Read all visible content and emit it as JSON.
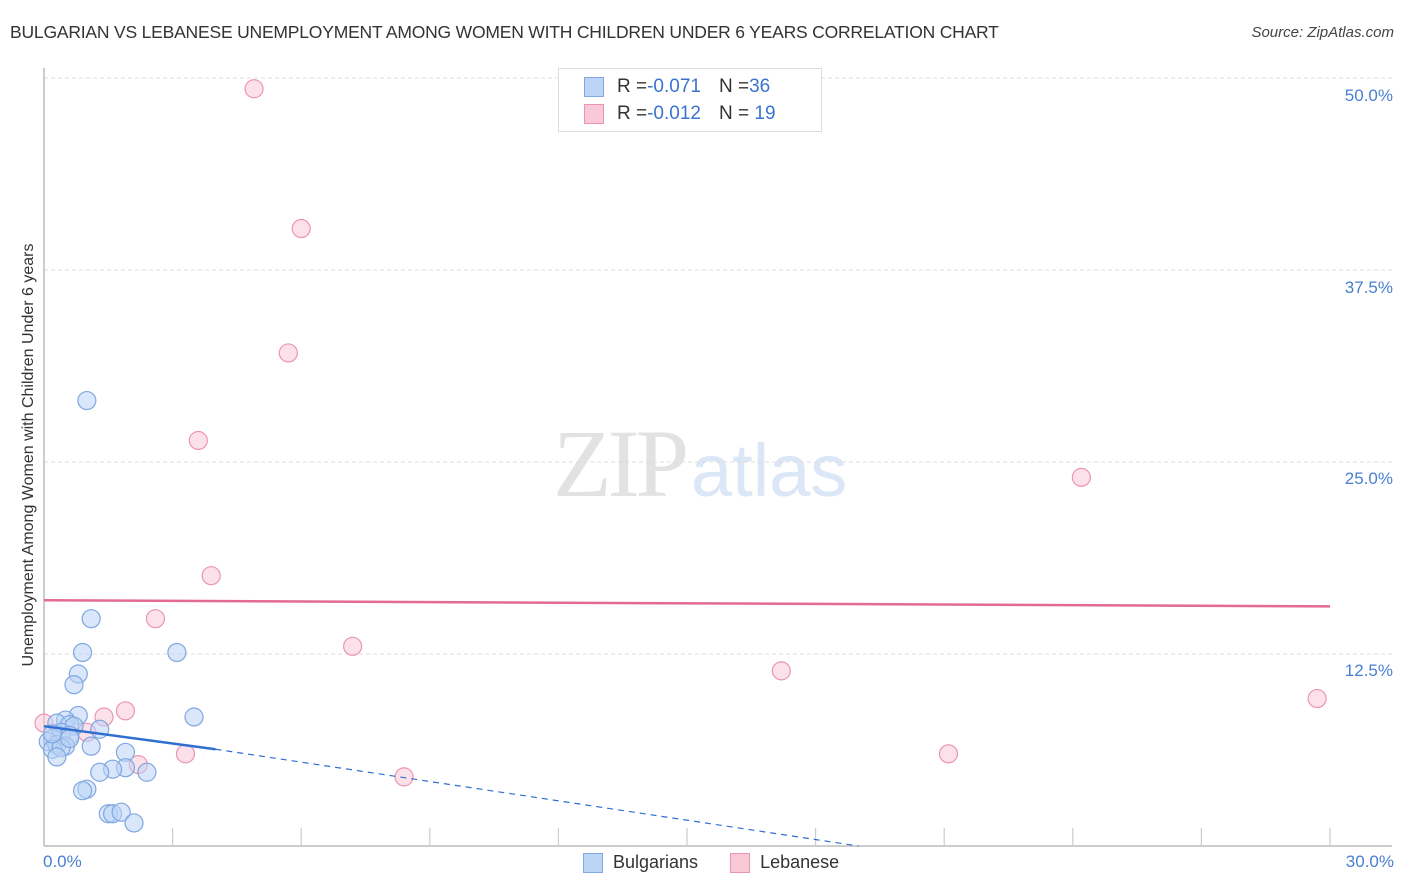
{
  "header": {
    "title": "BULGARIAN VS LEBANESE UNEMPLOYMENT AMONG WOMEN WITH CHILDREN UNDER 6 YEARS CORRELATION CHART",
    "source": "Source: ZipAtlas.com"
  },
  "legend": {
    "rows": [
      {
        "r_label": "R = ",
        "r_value": "-0.071",
        "n_label": "N = ",
        "n_value": "36"
      },
      {
        "r_label": "R = ",
        "r_value": "-0.012",
        "n_label": "N = ",
        "n_value": " 19"
      }
    ],
    "series": [
      {
        "label": "Bulgarians"
      },
      {
        "label": "Lebanese"
      }
    ]
  },
  "watermark": {
    "zip": "ZIP",
    "atlas": "atlas"
  },
  "axes": {
    "ylabel": "Unemployment Among Women with Children Under 6 years",
    "yticks": [
      "50.0%",
      "37.5%",
      "25.0%",
      "12.5%"
    ],
    "xticks": [
      "0.0%",
      "30.0%"
    ]
  },
  "colors": {
    "blue_fill": "#bcd4f5",
    "blue_stroke": "#7fa7e0",
    "blue_line": "#2f6fd0",
    "pink_fill": "#f9c9d8",
    "pink_stroke": "#ec95b1",
    "pink_line": "#e36a93",
    "tick_label": "#4a7fcf"
  },
  "chart_data": {
    "type": "scatter",
    "title": "BULGARIAN VS LEBANESE UNEMPLOYMENT AMONG WOMEN WITH CHILDREN UNDER 6 YEARS CORRELATION CHART",
    "xlabel": "",
    "ylabel": "Unemployment Among Women with Children Under 6 years",
    "xlim": [
      0,
      30
    ],
    "ylim": [
      0,
      50
    ],
    "grid": true,
    "legend_position": "top-center and bottom",
    "series": [
      {
        "name": "Bulgarians",
        "r": -0.071,
        "n": 36,
        "points": [
          [
            1.0,
            29.0
          ],
          [
            1.1,
            14.8
          ],
          [
            0.9,
            12.6
          ],
          [
            0.8,
            11.2
          ],
          [
            0.7,
            10.5
          ],
          [
            3.1,
            12.6
          ],
          [
            3.5,
            8.4
          ],
          [
            0.8,
            8.5
          ],
          [
            0.5,
            8.2
          ],
          [
            0.3,
            8.0
          ],
          [
            0.6,
            7.9
          ],
          [
            0.7,
            7.8
          ],
          [
            1.3,
            7.6
          ],
          [
            0.4,
            7.4
          ],
          [
            0.6,
            7.2
          ],
          [
            0.2,
            7.0
          ],
          [
            0.1,
            6.8
          ],
          [
            0.3,
            6.6
          ],
          [
            0.5,
            6.5
          ],
          [
            0.2,
            6.3
          ],
          [
            0.4,
            6.4
          ],
          [
            1.1,
            6.5
          ],
          [
            0.3,
            5.8
          ],
          [
            1.9,
            6.1
          ],
          [
            1.9,
            5.1
          ],
          [
            2.4,
            4.8
          ],
          [
            1.6,
            5.0
          ],
          [
            1.3,
            4.8
          ],
          [
            1.0,
            3.7
          ],
          [
            0.9,
            3.6
          ],
          [
            1.5,
            2.1
          ],
          [
            1.6,
            2.1
          ],
          [
            1.8,
            2.2
          ],
          [
            2.1,
            1.5
          ],
          [
            0.2,
            7.3
          ],
          [
            0.6,
            7.0
          ]
        ],
        "trend": {
          "x": [
            0,
            4,
            19
          ],
          "y": [
            7.8,
            6.3,
            0
          ],
          "solid_until_x": 4
        }
      },
      {
        "name": "Lebanese",
        "r": -0.012,
        "n": 19,
        "points": [
          [
            4.9,
            49.3
          ],
          [
            6.0,
            40.2
          ],
          [
            5.7,
            32.1
          ],
          [
            3.6,
            26.4
          ],
          [
            24.2,
            24.0
          ],
          [
            3.9,
            17.6
          ],
          [
            2.6,
            14.8
          ],
          [
            7.2,
            13.0
          ],
          [
            17.2,
            11.4
          ],
          [
            29.7,
            9.6
          ],
          [
            1.9,
            8.8
          ],
          [
            1.4,
            8.4
          ],
          [
            0.0,
            8.0
          ],
          [
            0.4,
            7.2
          ],
          [
            1.0,
            7.4
          ],
          [
            3.3,
            6.0
          ],
          [
            2.2,
            5.3
          ],
          [
            21.1,
            6.0
          ],
          [
            8.4,
            4.5
          ]
        ],
        "trend": {
          "x": [
            0,
            30
          ],
          "y": [
            16.0,
            15.6
          ]
        }
      }
    ]
  }
}
